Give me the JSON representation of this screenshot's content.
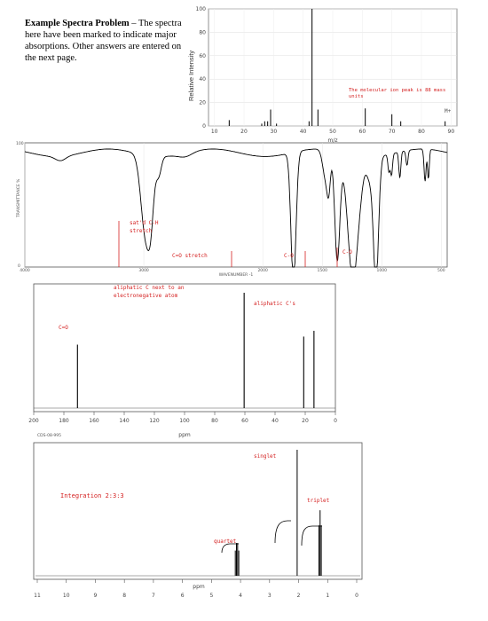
{
  "intro": {
    "title": "Example Spectra Problem",
    "dash": " – ",
    "body": "The spectra here have been marked to indicate major absorptions. Other answers are entered on the next page."
  },
  "colors": {
    "annotation": "#d42020",
    "trace": "#000000"
  },
  "chart_data": [
    {
      "type": "bar",
      "title": "",
      "xlabel": "m/z",
      "ylabel": "Relative Intensity",
      "xlim": [
        8,
        92
      ],
      "ylim": [
        0,
        100
      ],
      "x_ticks": [
        "10",
        "20",
        "30",
        "40",
        "50",
        "60",
        "70",
        "80",
        "90"
      ],
      "y_ticks": [
        "0",
        "20",
        "40",
        "60",
        "80",
        "100"
      ],
      "x": [
        15,
        26,
        27,
        28,
        29,
        31,
        42,
        43,
        45,
        61,
        70,
        73,
        88
      ],
      "values": [
        5,
        2,
        4,
        4,
        14,
        2,
        4,
        100,
        14,
        15,
        10,
        4,
        4
      ],
      "annotations": [
        "The molecular ion peak is 88 mass units",
        "M+"
      ]
    },
    {
      "type": "line",
      "title": "",
      "xlabel": "WAVENUMBER -1",
      "ylabel": "TRANSMITTANCE %",
      "xlim": [
        4000,
        450
      ],
      "x_ticks": [
        "4000",
        "3000",
        "2000",
        "1500",
        "1000",
        "500"
      ],
      "y_ticks": [
        "0",
        "100"
      ],
      "annotations": [
        "sat'd C-H stretch",
        "C=O stretch",
        "C-O",
        "C-O"
      ]
    },
    {
      "type": "bar",
      "title": "",
      "xlabel": "ppm",
      "xlim": [
        200,
        0
      ],
      "x_ticks": [
        "200",
        "180",
        "160",
        "140",
        "120",
        "100",
        "80",
        "60",
        "40",
        "20",
        "0"
      ],
      "x": [
        171,
        60.5,
        21,
        14.2
      ],
      "values": [
        55,
        100,
        62,
        67
      ],
      "footnote": "CDS-08-995",
      "annotations": [
        "C=O",
        "aliphatic C next to an electronegative atom",
        "aliphatic C's"
      ]
    },
    {
      "type": "bar",
      "title": "",
      "xlabel": "ppm",
      "xlim": [
        11,
        0
      ],
      "x_ticks": [
        "11",
        "10",
        "9",
        "8",
        "7",
        "6",
        "5",
        "4",
        "3",
        "2",
        "1",
        "0"
      ],
      "x": [
        4.18,
        4.14,
        4.1,
        4.06,
        2.05,
        1.3,
        1.26,
        1.22
      ],
      "values": [
        20,
        26,
        26,
        20,
        100,
        40,
        52,
        40
      ],
      "annotations": [
        "Integration 2:3:3",
        "quartet",
        "singlet",
        "triplet"
      ]
    }
  ]
}
